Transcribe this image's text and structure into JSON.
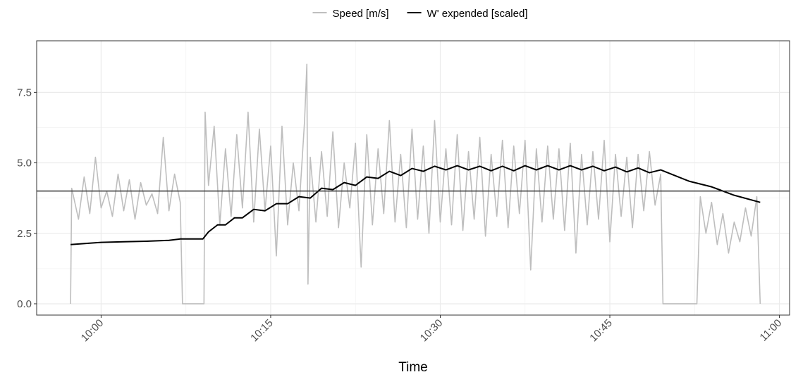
{
  "chart_data": {
    "type": "line",
    "x_label": "Time",
    "xlim": [
      594.3,
      660.9
    ],
    "xticks": [
      {
        "value": 600,
        "label": "10:00"
      },
      {
        "value": 615,
        "label": "10:15"
      },
      {
        "value": 630,
        "label": "10:30"
      },
      {
        "value": 645,
        "label": "10:45"
      },
      {
        "value": 660,
        "label": "11:00"
      }
    ],
    "ylim": [
      -0.4,
      9.33
    ],
    "yticks": [
      {
        "value": 0,
        "label": "0.0"
      },
      2.5,
      {
        "value": 5,
        "label": "5.0"
      },
      7.5
    ],
    "grid": true,
    "hline": 4,
    "hline_color": "#333333",
    "legend": "top",
    "series": [
      {
        "name": "Speed [m/s]",
        "color": "#bebebe",
        "x": [
          597.3,
          597.4,
          598,
          598.5,
          599,
          599.5,
          600,
          600.5,
          601,
          601.5,
          602,
          602.5,
          603,
          603.5,
          604,
          604.5,
          605,
          605.5,
          606,
          606.5,
          607,
          607.2,
          609.1,
          609.2,
          609.5,
          610,
          610.5,
          611,
          611.5,
          612,
          612.5,
          613,
          613.5,
          614,
          614.5,
          615,
          615.5,
          616,
          616.5,
          617,
          617.5,
          618,
          618.2,
          618.3,
          618.5,
          619,
          619.5,
          620,
          620.5,
          621,
          621.5,
          622,
          622.5,
          623,
          623.5,
          624,
          624.5,
          625,
          625.5,
          626,
          626.5,
          627,
          627.5,
          628,
          628.5,
          629,
          629.5,
          630,
          630.5,
          631,
          631.5,
          632,
          632.5,
          633,
          633.5,
          634,
          634.5,
          635,
          635.5,
          636,
          636.5,
          637,
          637.5,
          638,
          638.5,
          639,
          639.5,
          640,
          640.5,
          641,
          641.5,
          642,
          642.5,
          643,
          643.5,
          644,
          644.5,
          645,
          645.5,
          646,
          646.5,
          647,
          647.5,
          648,
          648.5,
          649,
          649.5,
          649.7,
          652.7,
          653,
          653.5,
          654,
          654.5,
          655,
          655.5,
          656,
          656.5,
          657,
          657.5,
          658,
          658.3
        ],
        "values": [
          0,
          4.1,
          3.0,
          4.5,
          3.2,
          5.2,
          3.4,
          4.0,
          3.1,
          4.6,
          3.3,
          4.4,
          3.0,
          4.3,
          3.5,
          3.9,
          3.2,
          5.9,
          3.3,
          4.6,
          3.6,
          0,
          0,
          6.8,
          4.2,
          6.3,
          2.8,
          5.5,
          3.1,
          6.0,
          3.4,
          6.8,
          2.9,
          6.2,
          3.3,
          5.6,
          1.7,
          6.3,
          2.8,
          5.0,
          3.3,
          6.5,
          8.5,
          0.7,
          5.2,
          2.9,
          5.4,
          3.1,
          6.1,
          2.7,
          5.0,
          3.4,
          5.7,
          1.3,
          6.0,
          2.8,
          5.5,
          3.2,
          6.5,
          2.9,
          5.3,
          2.7,
          6.2,
          3.0,
          5.6,
          2.5,
          6.5,
          2.9,
          5.5,
          2.8,
          6.0,
          2.6,
          5.4,
          3.0,
          5.9,
          2.4,
          5.3,
          3.1,
          5.8,
          2.7,
          5.6,
          3.2,
          5.8,
          1.2,
          5.5,
          2.9,
          5.6,
          3.0,
          5.5,
          2.6,
          5.7,
          1.8,
          5.3,
          2.8,
          5.4,
          3.0,
          5.8,
          2.2,
          5.3,
          3.1,
          5.2,
          2.7,
          5.3,
          3.3,
          5.4,
          3.5,
          4.6,
          0,
          0,
          3.8,
          2.5,
          3.6,
          2.1,
          3.2,
          1.8,
          2.9,
          2.2,
          3.4,
          2.4,
          3.8,
          0
        ]
      },
      {
        "name": "W' expended [scaled]",
        "color": "#000000",
        "x": [
          597.3,
          599,
          600,
          602,
          604,
          606,
          607,
          609,
          609.5,
          610.3,
          611,
          611.8,
          612.5,
          613.5,
          614.5,
          615.5,
          616.5,
          617.5,
          618.5,
          619.5,
          620.5,
          621.5,
          622.5,
          623.5,
          624.5,
          625.5,
          626.5,
          627.5,
          628.5,
          629.5,
          630.5,
          631.5,
          632.5,
          633.5,
          634.5,
          635.5,
          636.5,
          637.5,
          638.5,
          639.5,
          640.5,
          641.5,
          642.5,
          643.5,
          644.5,
          645.5,
          646.5,
          647.5,
          648.5,
          649.5,
          652,
          654,
          656,
          658.3
        ],
        "values": [
          2.1,
          2.15,
          2.18,
          2.2,
          2.22,
          2.25,
          2.3,
          2.3,
          2.55,
          2.8,
          2.8,
          3.05,
          3.05,
          3.35,
          3.3,
          3.55,
          3.55,
          3.8,
          3.75,
          4.1,
          4.05,
          4.3,
          4.2,
          4.5,
          4.45,
          4.7,
          4.55,
          4.8,
          4.7,
          4.88,
          4.75,
          4.9,
          4.75,
          4.88,
          4.72,
          4.88,
          4.72,
          4.9,
          4.75,
          4.9,
          4.75,
          4.9,
          4.75,
          4.88,
          4.72,
          4.85,
          4.68,
          4.82,
          4.65,
          4.75,
          4.35,
          4.15,
          3.85,
          3.6
        ]
      }
    ]
  }
}
